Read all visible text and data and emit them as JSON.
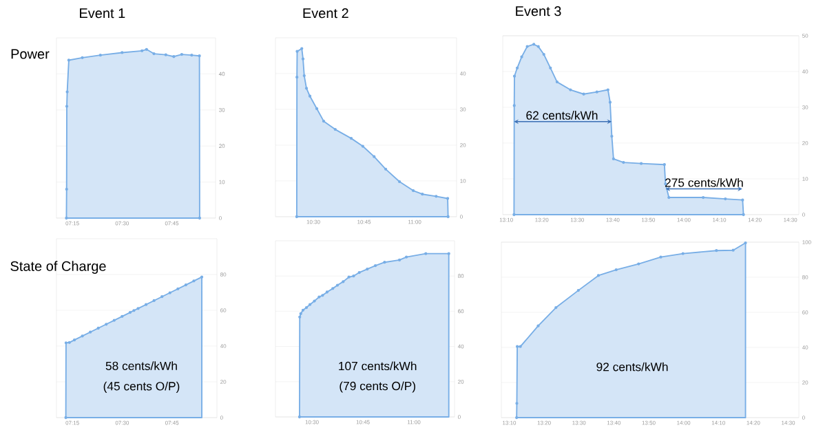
{
  "chart_data": [
    {
      "type": "area",
      "title": "Event 1",
      "ylabel": "Power",
      "color": "#78aee6",
      "grid": "y",
      "marker": "circle",
      "x": [
        7.22,
        7.221,
        7.222,
        7.224,
        7.232,
        7.3,
        7.391,
        7.5,
        7.6,
        7.623,
        7.66,
        7.72,
        7.76,
        7.8,
        7.85,
        7.889,
        7.89
      ],
      "values": [
        0,
        8,
        31,
        35,
        43.8,
        44.5,
        45.2,
        45.9,
        46.4,
        46.8,
        45.6,
        45.3,
        44.8,
        45.4,
        45.2,
        45,
        0
      ],
      "xlim": [
        7.17,
        7.97
      ],
      "ylim": [
        0,
        50
      ],
      "xticks": [
        {
          "value": 7.25,
          "label": "07:15"
        },
        {
          "value": 7.5,
          "label": "07:30"
        },
        {
          "value": 7.75,
          "label": "07:45"
        }
      ],
      "yticks": [
        0,
        10,
        20,
        30,
        40
      ]
    },
    {
      "type": "area",
      "title": "Event 2",
      "color": "#78aee6",
      "grid": "y",
      "marker": "circle",
      "x": [
        10.418,
        10.419,
        10.42,
        10.443,
        10.449,
        10.455,
        10.466,
        10.483,
        10.517,
        10.551,
        10.608,
        10.687,
        10.744,
        10.8,
        10.857,
        10.925,
        10.993,
        11.038,
        11.106,
        11.163,
        11.165
      ],
      "values": [
        0,
        39,
        46.2,
        47,
        44.1,
        39.4,
        35.9,
        33.7,
        30.2,
        26.7,
        24.4,
        21.9,
        19.7,
        16.8,
        13.3,
        9.8,
        7.3,
        6.3,
        5.7,
        5.1,
        0
      ],
      "xlim": [
        10.313,
        11.207
      ],
      "ylim": [
        0,
        50
      ],
      "xticks": [
        {
          "value": 10.5,
          "label": "10:30"
        },
        {
          "value": 10.75,
          "label": "10:45"
        },
        {
          "value": 11,
          "label": "11:00"
        }
      ],
      "yticks": [
        0,
        10,
        20,
        30,
        40
      ]
    },
    {
      "type": "area",
      "title": "Event 3",
      "color": "#78aee6",
      "grid": "y",
      "marker": "circle",
      "x": [
        13.203,
        13.204,
        13.205,
        13.218,
        13.239,
        13.265,
        13.296,
        13.317,
        13.343,
        13.374,
        13.405,
        13.468,
        13.53,
        13.592,
        13.644,
        13.654,
        13.662,
        13.67,
        13.717,
        13.8,
        13.909,
        13.914,
        13.93,
        14.091,
        14.195,
        14.276,
        14.28
      ],
      "values": [
        0,
        30.5,
        38.7,
        41,
        44.1,
        47,
        47.6,
        47,
        44.8,
        41,
        37.1,
        34.9,
        33.7,
        34.3,
        34.9,
        31.4,
        21.9,
        15.6,
        14.6,
        14.3,
        14,
        8.6,
        4.8,
        4.8,
        4.4,
        4.1,
        0
      ],
      "xlim": [
        13.15,
        14.54
      ],
      "ylim": [
        0,
        50
      ],
      "xticks": [
        {
          "value": 13.1667,
          "label": "13:10"
        },
        {
          "value": 13.3333,
          "label": "13:20"
        },
        {
          "value": 13.5,
          "label": "13:30"
        },
        {
          "value": 13.6667,
          "label": "13:40"
        },
        {
          "value": 13.8333,
          "label": "13:50"
        },
        {
          "value": 14,
          "label": "14:00"
        },
        {
          "value": 14.1667,
          "label": "14:10"
        },
        {
          "value": 14.3333,
          "label": "14:20"
        },
        {
          "value": 14.5,
          "label": "14:30"
        }
      ],
      "yticks": [
        0,
        10,
        20,
        30,
        40,
        50
      ],
      "annotations": [
        "62 cents/kWh",
        "275 cents/kWh"
      ]
    },
    {
      "type": "area",
      "ylabel": "State of Charge",
      "color": "#78aee6",
      "grid": "y",
      "marker": "circle",
      "x": [
        7.217,
        7.218,
        7.235,
        7.26,
        7.3,
        7.34,
        7.38,
        7.42,
        7.46,
        7.5,
        7.54,
        7.559,
        7.58,
        7.62,
        7.66,
        7.7,
        7.74,
        7.78,
        7.82,
        7.86,
        7.9
      ],
      "values": [
        0,
        41.8,
        42,
        43.4,
        45.6,
        47.8,
        50,
        52.2,
        54.4,
        56.6,
        58.8,
        59.9,
        61,
        63.2,
        65.4,
        67.6,
        69.8,
        72,
        74.2,
        76.4,
        78.6
      ],
      "xlim": [
        7.17,
        7.976
      ],
      "ylim": [
        0,
        100
      ],
      "xticks": [
        {
          "value": 7.25,
          "label": "07:15"
        },
        {
          "value": 7.5,
          "label": "07:30"
        },
        {
          "value": 7.75,
          "label": "07:45"
        }
      ],
      "yticks": [
        0,
        20,
        40,
        60,
        80
      ],
      "annotations": [
        "58 cents/kWh",
        "(45 cents O/P)"
      ]
    },
    {
      "type": "area",
      "color": "#78aee6",
      "grid": "y",
      "marker": "circle",
      "x": [
        10.439,
        10.44,
        10.445,
        10.456,
        10.473,
        10.49,
        10.512,
        10.535,
        10.552,
        10.574,
        10.602,
        10.625,
        10.653,
        10.681,
        10.704,
        10.732,
        10.771,
        10.811,
        10.856,
        10.929,
        10.963,
        11.058,
        11.171
      ],
      "values": [
        0,
        56.7,
        58.6,
        60.6,
        62.1,
        63.8,
        65.8,
        68.1,
        69,
        70.9,
        72.9,
        74.8,
        76.8,
        79.4,
        80,
        82,
        83.9,
        85.9,
        87.8,
        89.1,
        90.8,
        92.7,
        92.7
      ],
      "xlim": [
        10.321,
        11.199
      ],
      "ylim": [
        0,
        100
      ],
      "xticks": [
        {
          "value": 10.5,
          "label": "10:30"
        },
        {
          "value": 10.75,
          "label": "10:45"
        },
        {
          "value": 11,
          "label": "11:00"
        }
      ],
      "yticks": [
        0,
        20,
        40,
        60,
        80
      ],
      "annotations": [
        "107 cents/kWh",
        "(79 cents O/P)"
      ]
    },
    {
      "type": "area",
      "color": "#78aee6",
      "grid": "y",
      "marker": "circle",
      "x": [
        13.202,
        13.203,
        13.205,
        13.22,
        13.305,
        13.39,
        13.497,
        13.593,
        13.678,
        13.785,
        13.891,
        13.997,
        14.157,
        14.237,
        14.296
      ],
      "values": [
        0,
        8.1,
        40.5,
        40.5,
        52.3,
        62.7,
        72.5,
        81,
        84.3,
        87.6,
        91.5,
        93.5,
        95.2,
        95.4,
        99.6
      ],
      "xlim": [
        13.129,
        14.551
      ],
      "ylim": [
        0,
        100
      ],
      "xticks": [
        {
          "value": 13.1667,
          "label": "13:10"
        },
        {
          "value": 13.3333,
          "label": "13:20"
        },
        {
          "value": 13.5,
          "label": "13:30"
        },
        {
          "value": 13.6667,
          "label": "13:40"
        },
        {
          "value": 13.8333,
          "label": "13:50"
        },
        {
          "value": 14,
          "label": "14:00"
        },
        {
          "value": 14.1667,
          "label": "14:10"
        },
        {
          "value": 14.3333,
          "label": "14:20"
        },
        {
          "value": 14.5,
          "label": "14:30"
        }
      ],
      "yticks": [
        0,
        20,
        40,
        60,
        80,
        100
      ],
      "annotations": [
        "92 cents/kWh"
      ]
    }
  ]
}
